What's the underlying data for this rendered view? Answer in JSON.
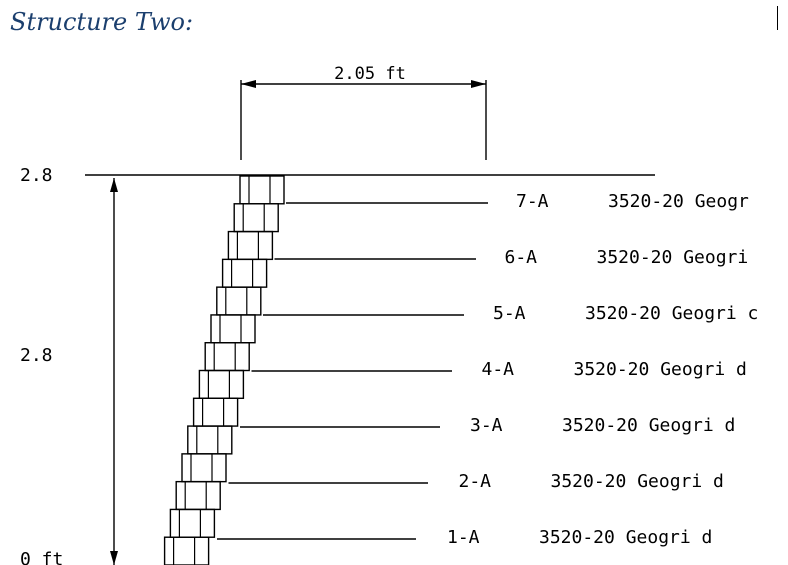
{
  "title": "Structure Two:",
  "dimensions": {
    "width_label": "2.05 ft",
    "top_elevation": "2.8",
    "height_label": "2.8",
    "bottom_elevation": "0 ft"
  },
  "layers": [
    {
      "id": "7-A",
      "material": "3520-20 Geogr"
    },
    {
      "id": "6-A",
      "material": "3520-20 Geogri"
    },
    {
      "id": "5-A",
      "material": "3520-20 Geogri c"
    },
    {
      "id": "4-A",
      "material": "3520-20 Geogri d"
    },
    {
      "id": "3-A",
      "material": "3520-20 Geogri d"
    },
    {
      "id": "2-A",
      "material": "3520-20 Geogri d"
    },
    {
      "id": "1-A",
      "material": "3520-20 Geogri d"
    }
  ],
  "colors": {
    "title": "#1b3f6e",
    "line": "#000000"
  }
}
